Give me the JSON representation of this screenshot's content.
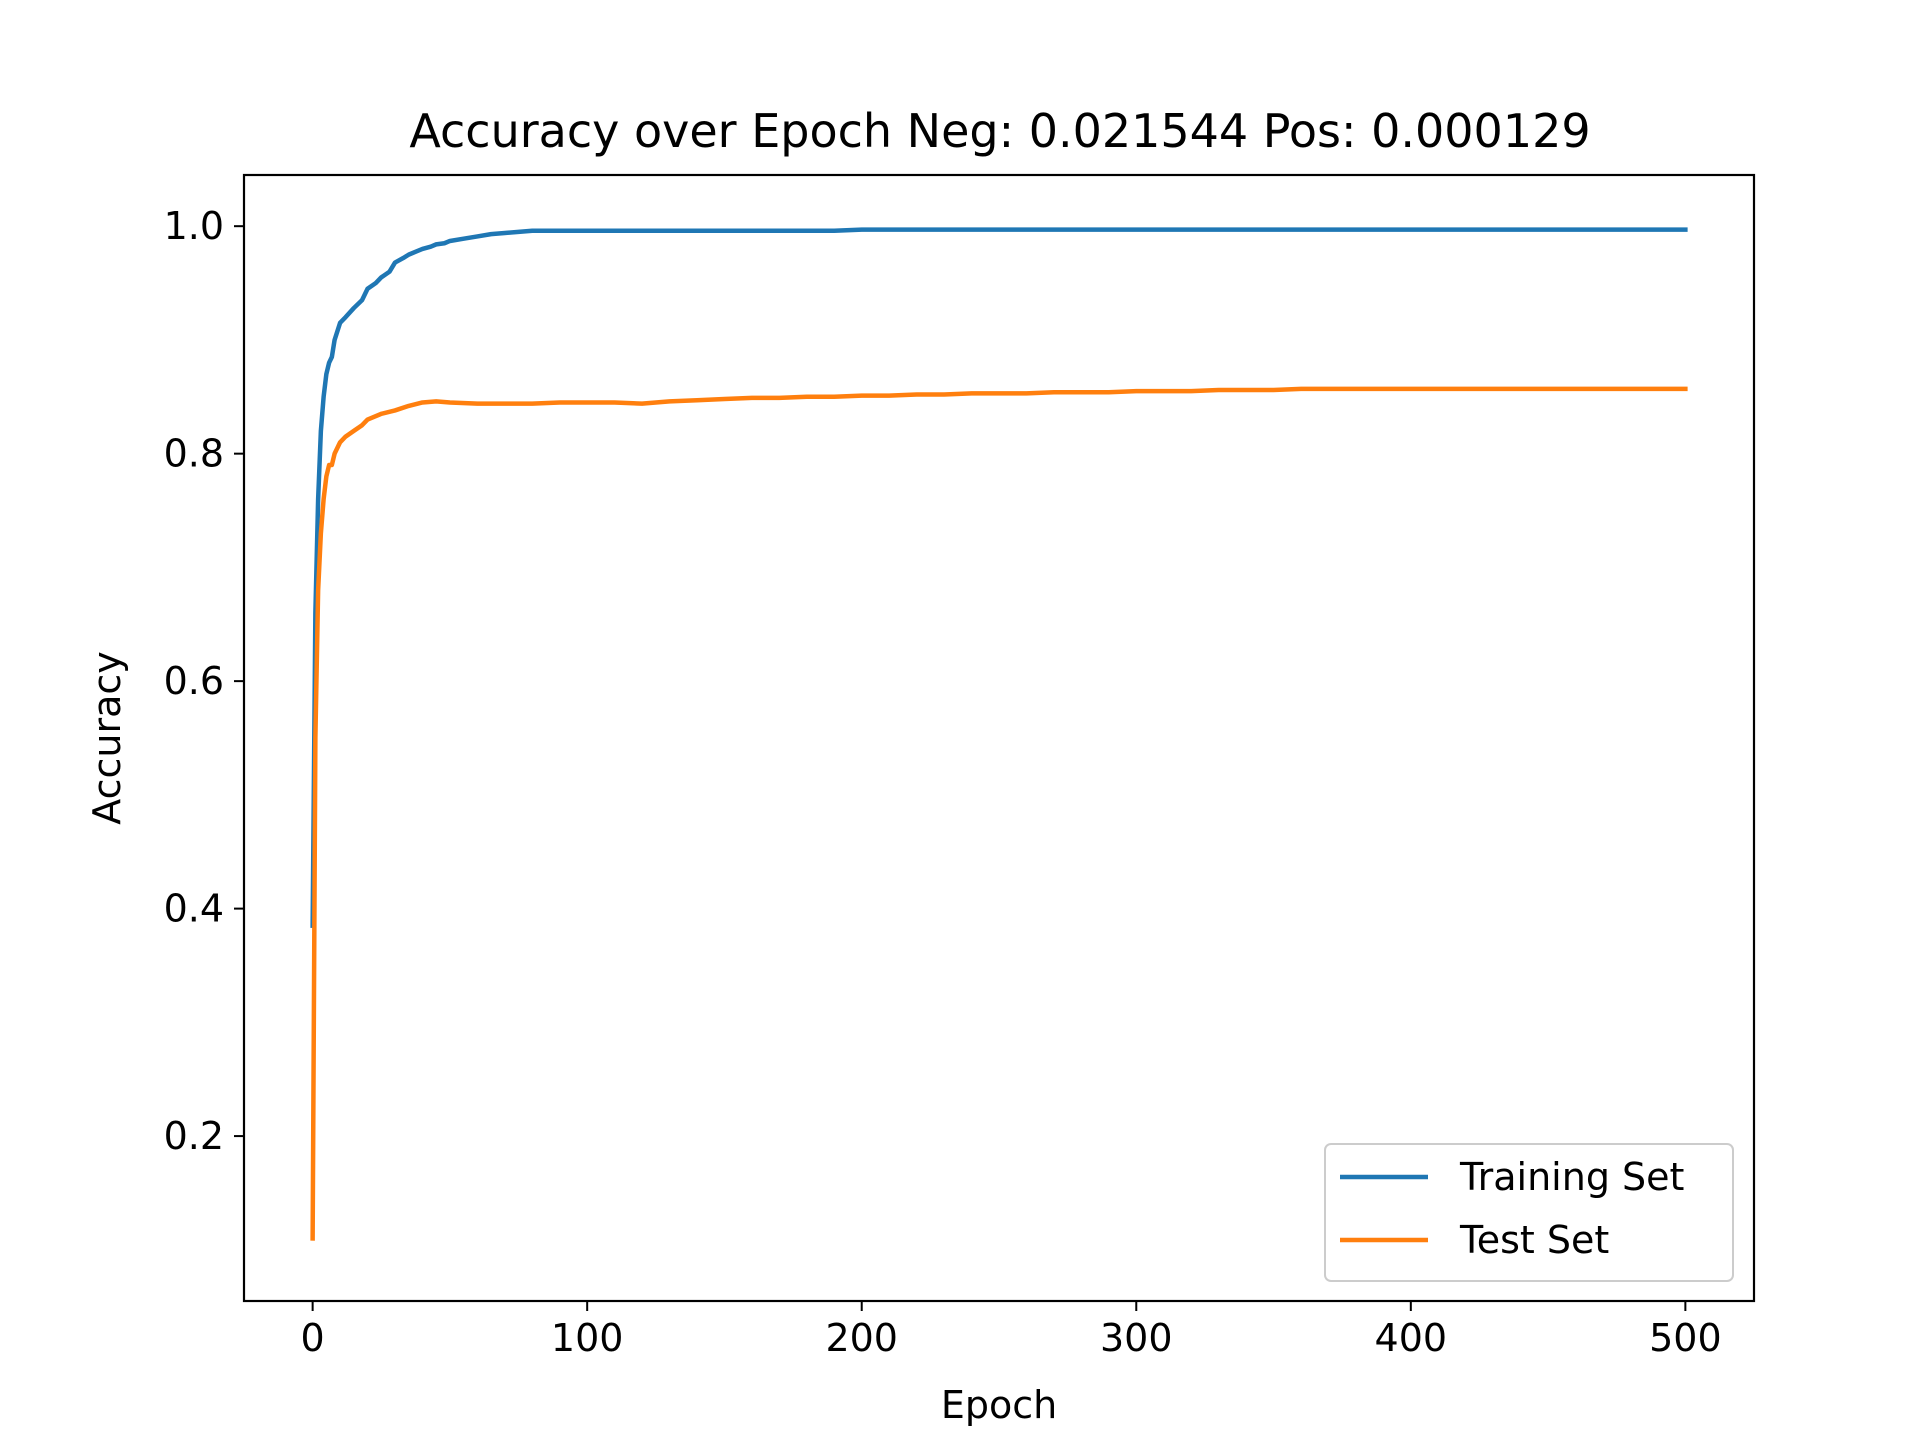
{
  "chart_data": {
    "type": "line",
    "title": "Accuracy over Epoch Neg: 0.021544 Pos: 0.000129",
    "xlabel": "Epoch",
    "ylabel": "Accuracy",
    "xlim": [
      -25,
      525
    ],
    "ylim": [
      0.055,
      1.045
    ],
    "xticks": [
      0,
      100,
      200,
      300,
      400,
      500
    ],
    "xtick_labels": [
      "0",
      "100",
      "200",
      "300",
      "400",
      "500"
    ],
    "yticks": [
      0.2,
      0.4,
      0.6,
      0.8,
      1.0
    ],
    "ytick_labels": [
      "0.2",
      "0.4",
      "0.6",
      "0.8",
      "1.0"
    ],
    "grid": false,
    "legend_position": "lower-right",
    "series": [
      {
        "name": "Training Set",
        "color": "#1f77b4",
        "x": [
          0,
          1,
          2,
          3,
          4,
          5,
          6,
          7,
          8,
          10,
          12,
          15,
          18,
          20,
          23,
          25,
          28,
          30,
          33,
          35,
          38,
          40,
          43,
          45,
          48,
          50,
          55,
          60,
          65,
          70,
          75,
          80,
          90,
          100,
          110,
          120,
          130,
          140,
          150,
          160,
          170,
          180,
          190,
          200,
          210,
          220,
          230,
          240,
          250,
          260,
          270,
          280,
          290,
          300,
          310,
          320,
          330,
          340,
          350,
          360,
          370,
          380,
          390,
          400,
          410,
          420,
          430,
          440,
          450,
          460,
          470,
          480,
          490,
          500
        ],
        "y": [
          0.385,
          0.66,
          0.76,
          0.82,
          0.85,
          0.87,
          0.88,
          0.885,
          0.9,
          0.915,
          0.92,
          0.928,
          0.935,
          0.945,
          0.95,
          0.955,
          0.96,
          0.968,
          0.972,
          0.975,
          0.978,
          0.98,
          0.982,
          0.984,
          0.985,
          0.987,
          0.989,
          0.991,
          0.993,
          0.994,
          0.995,
          0.996,
          0.996,
          0.996,
          0.996,
          0.996,
          0.996,
          0.996,
          0.996,
          0.996,
          0.996,
          0.996,
          0.996,
          0.997,
          0.997,
          0.997,
          0.997,
          0.997,
          0.997,
          0.997,
          0.997,
          0.997,
          0.997,
          0.997,
          0.997,
          0.997,
          0.997,
          0.997,
          0.997,
          0.997,
          0.997,
          0.997,
          0.997,
          0.997,
          0.997,
          0.997,
          0.997,
          0.997,
          0.997,
          0.997,
          0.997,
          0.997,
          0.997,
          0.997
        ]
      },
      {
        "name": "Test Set",
        "color": "#ff7f0e",
        "x": [
          0,
          1,
          2,
          3,
          4,
          5,
          6,
          7,
          8,
          10,
          12,
          15,
          18,
          20,
          25,
          30,
          35,
          40,
          45,
          50,
          60,
          70,
          80,
          90,
          100,
          110,
          120,
          130,
          140,
          150,
          160,
          170,
          180,
          190,
          200,
          210,
          220,
          230,
          240,
          250,
          260,
          270,
          280,
          290,
          300,
          310,
          320,
          330,
          340,
          350,
          360,
          370,
          380,
          390,
          400,
          410,
          420,
          430,
          440,
          450,
          460,
          470,
          480,
          490,
          500
        ],
        "y": [
          0.11,
          0.55,
          0.68,
          0.73,
          0.76,
          0.78,
          0.79,
          0.79,
          0.8,
          0.81,
          0.815,
          0.82,
          0.825,
          0.83,
          0.835,
          0.838,
          0.842,
          0.845,
          0.846,
          0.845,
          0.844,
          0.844,
          0.844,
          0.845,
          0.845,
          0.845,
          0.844,
          0.846,
          0.847,
          0.848,
          0.849,
          0.849,
          0.85,
          0.85,
          0.851,
          0.851,
          0.852,
          0.852,
          0.853,
          0.853,
          0.853,
          0.854,
          0.854,
          0.854,
          0.855,
          0.855,
          0.855,
          0.856,
          0.856,
          0.856,
          0.857,
          0.857,
          0.857,
          0.857,
          0.857,
          0.857,
          0.857,
          0.857,
          0.857,
          0.857,
          0.857,
          0.857,
          0.857,
          0.857,
          0.857
        ]
      }
    ]
  }
}
